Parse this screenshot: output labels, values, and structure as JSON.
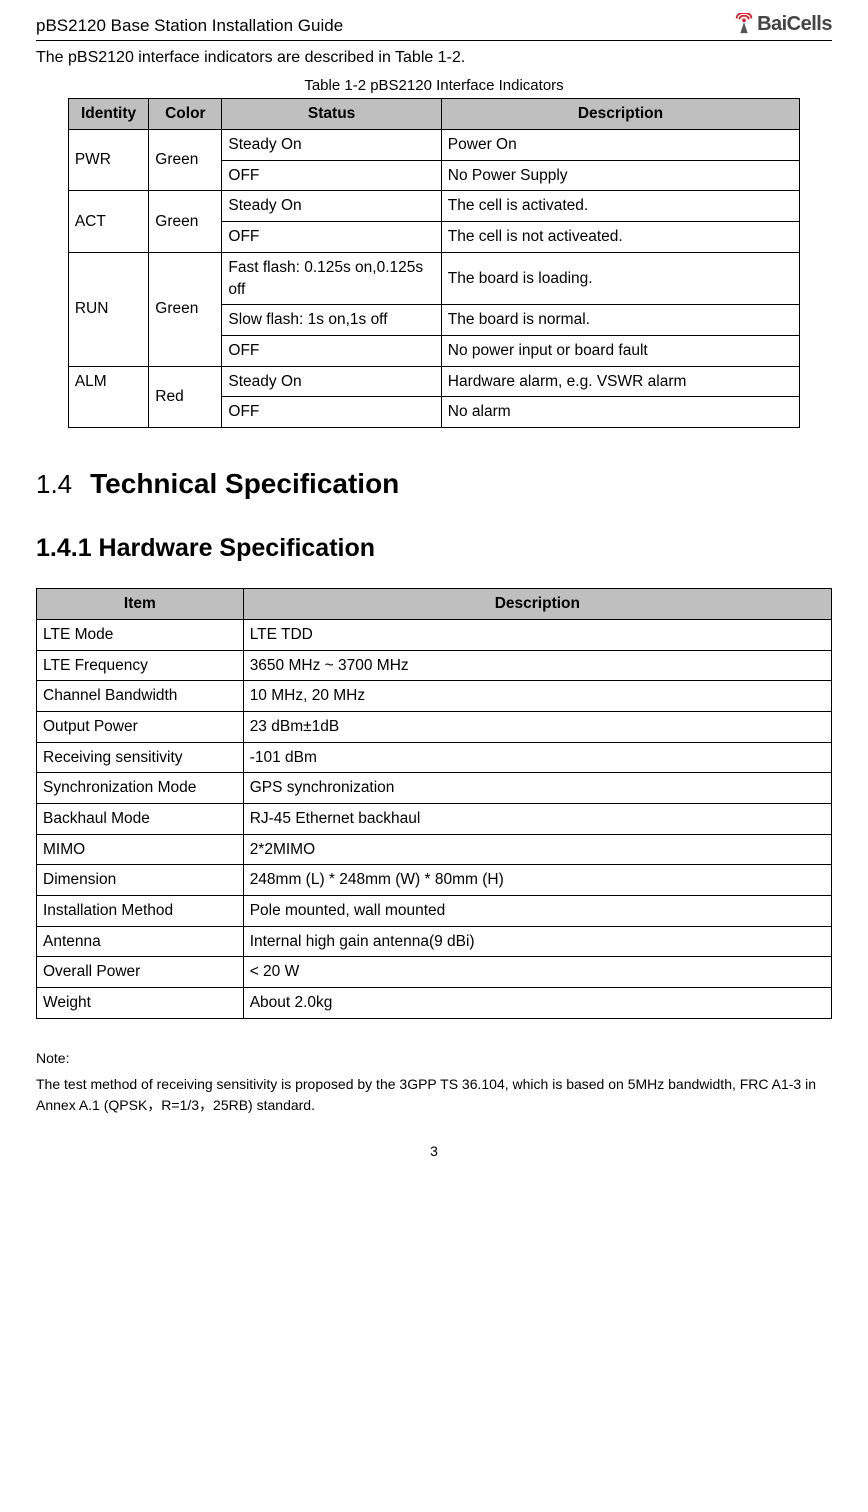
{
  "header": {
    "title": "pBS2120 Base Station Installation Guide",
    "logo_text": "BaiCells"
  },
  "intro_text": "The pBS2120 interface indicators are described in Table 1-2.",
  "table1": {
    "caption": "Table 1-2 pBS2120 Interface Indicators",
    "headers": {
      "c1": "Identity",
      "c2": "Color",
      "c3": "Status",
      "c4": "Description"
    },
    "rows": {
      "pwr": {
        "id": "PWR",
        "color": "Green",
        "r1s": "Steady On",
        "r1d": "Power On",
        "r2s": "OFF",
        "r2d": "No Power Supply"
      },
      "act": {
        "id": "ACT",
        "color": "Green",
        "r1s": "Steady On",
        "r1d": "The cell is activated.",
        "r2s": "OFF",
        "r2d": "The cell is not activeated."
      },
      "run": {
        "id": "RUN",
        "color": "Green",
        "r1s": "Fast flash: 0.125s on,0.125s off",
        "r1d": "The board is loading.",
        "r2s": "Slow flash: 1s on,1s off",
        "r2d": "The board is normal.",
        "r3s": "OFF",
        "r3d": "No power input or board fault"
      },
      "alm": {
        "id": "ALM",
        "color": "Red",
        "r1s": "Steady On",
        "r1d": "Hardware alarm, e.g. VSWR alarm",
        "r2s": "OFF",
        "r2d": "No alarm"
      }
    }
  },
  "section": {
    "num": "1.4",
    "title": "Technical Specification"
  },
  "subsection": "1.4.1 Hardware Specification",
  "table2": {
    "headers": {
      "c1": "Item",
      "c2": "Description"
    },
    "rows": [
      {
        "item": "LTE Mode",
        "desc": "LTE TDD"
      },
      {
        "item": "LTE Frequency",
        "desc": "3650 MHz ~ 3700 MHz"
      },
      {
        "item": "Channel Bandwidth",
        "desc": "10 MHz, 20 MHz"
      },
      {
        "item": "Output Power",
        "desc": "23 dBm±1dB"
      },
      {
        "item": "Receiving sensitivity",
        "desc": "-101 dBm"
      },
      {
        "item": "Synchronization Mode",
        "desc": "GPS synchronization"
      },
      {
        "item": "Backhaul Mode",
        "desc": "RJ-45 Ethernet backhaul"
      },
      {
        "item": "MIMO",
        "desc": "2*2MIMO"
      },
      {
        "item": "Dimension",
        "desc": "248mm (L) * 248mm (W) * 80mm (H)"
      },
      {
        "item": "Installation Method",
        "desc": "Pole mounted, wall mounted"
      },
      {
        "item": "Antenna",
        "desc": "Internal high gain antenna(9 dBi)"
      },
      {
        "item": "Overall Power",
        "desc": "< 20 W"
      },
      {
        "item": "Weight",
        "desc": "About 2.0kg"
      }
    ]
  },
  "note": {
    "title": "Note:",
    "body": "The test method of receiving sensitivity is proposed by the 3GPP TS 36.104, which is based on 5MHz bandwidth, FRC A1-3 in Annex A.1 (QPSK，R=1/3，25RB) standard."
  },
  "page_number": "3",
  "colors": {
    "table_header_bg": "#bfbfbf",
    "text": "#000000",
    "background": "#ffffff",
    "logo_red": "#d9232e",
    "logo_gray": "#555555"
  }
}
